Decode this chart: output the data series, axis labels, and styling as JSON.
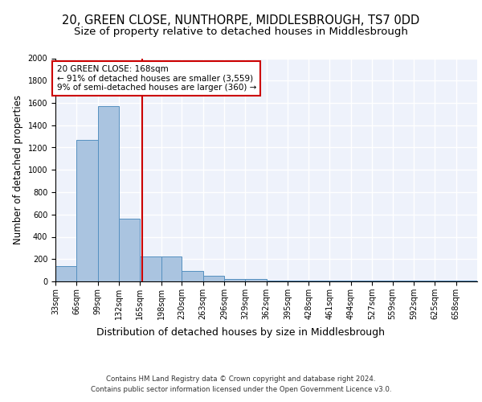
{
  "title": "20, GREEN CLOSE, NUNTHORPE, MIDDLESBROUGH, TS7 0DD",
  "subtitle": "Size of property relative to detached houses in Middlesbrough",
  "xlabel": "Distribution of detached houses by size in Middlesbrough",
  "ylabel": "Number of detached properties",
  "footer_line1": "Contains HM Land Registry data © Crown copyright and database right 2024.",
  "footer_line2": "Contains public sector information licensed under the Open Government Licence v3.0.",
  "bins": [
    33,
    66,
    99,
    132,
    165,
    198,
    230,
    263,
    296,
    329,
    362,
    395,
    428,
    461,
    494,
    527,
    559,
    592,
    625,
    658,
    691
  ],
  "counts": [
    140,
    1265,
    1570,
    565,
    220,
    220,
    95,
    50,
    25,
    20,
    5,
    5,
    5,
    5,
    5,
    5,
    5,
    5,
    5,
    5
  ],
  "bar_color": "#aac4e0",
  "bar_edgecolor": "#5590c0",
  "property_line_x": 168,
  "annotation_line1": "20 GREEN CLOSE: 168sqm",
  "annotation_line2": "← 91% of detached houses are smaller (3,559)",
  "annotation_line3": "9% of semi-detached houses are larger (360) →",
  "annotation_box_color": "#cc0000",
  "vline_color": "#cc0000",
  "ylim": [
    0,
    2000
  ],
  "yticks": [
    0,
    200,
    400,
    600,
    800,
    1000,
    1200,
    1400,
    1600,
    1800,
    2000
  ],
  "background_color": "#eef2fb",
  "grid_color": "#ffffff",
  "title_fontsize": 10.5,
  "subtitle_fontsize": 9.5,
  "xlabel_fontsize": 9,
  "ylabel_fontsize": 8.5,
  "tick_fontsize": 7,
  "annotation_fontsize": 7.5,
  "footer_fontsize": 6.2
}
